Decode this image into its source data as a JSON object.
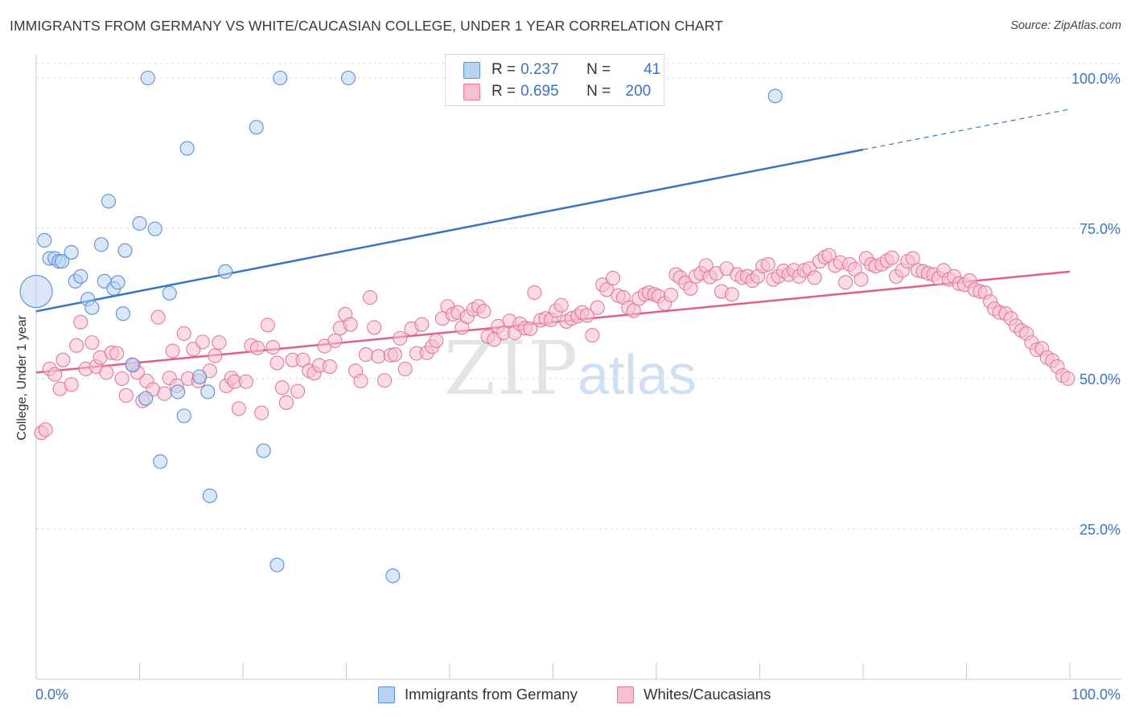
{
  "title": "IMMIGRANTS FROM GERMANY VS WHITE/CAUCASIAN COLLEGE, UNDER 1 YEAR CORRELATION CHART",
  "source": "Source: ZipAtlas.com",
  "watermark": {
    "zip": "ZIP",
    "atlas": "atlas"
  },
  "legend": {
    "r_label": "R =",
    "n_label": "N =",
    "series": [
      {
        "name": "Immigrants from Germany",
        "r": "0.237",
        "n": "41",
        "fill": "#b9d4f3",
        "stroke": "#5b8fd6"
      },
      {
        "name": "Whites/Caucasians",
        "r": "0.695",
        "n": "200",
        "fill": "#f7bfd0",
        "stroke": "#e27a9e"
      }
    ]
  },
  "colors": {
    "blue_fill": "#b9d4f3",
    "blue_stroke": "#5b8fd6",
    "blue_line": "#3a74c4",
    "pink_fill": "#f7bfd0",
    "pink_stroke": "#e27a9e",
    "pink_line": "#e0608a",
    "tick_label": "#3a74c4",
    "grid": "#d8d8d8"
  },
  "chart_data": {
    "type": "scatter",
    "xlabel": "",
    "ylabel": "College, Under 1 year",
    "xlim": [
      0,
      100
    ],
    "ylim": [
      0,
      103
    ],
    "x_tick_labels": [
      {
        "value": 0,
        "label": "0.0%"
      },
      {
        "value": 100,
        "label": "100.0%"
      }
    ],
    "y_tick_labels": [
      {
        "value": 25,
        "label": "25.0%"
      },
      {
        "value": 50,
        "label": "50.0%"
      },
      {
        "value": 75,
        "label": "75.0%"
      },
      {
        "value": 100,
        "label": "100.0%"
      }
    ],
    "grid": "horizontal dashed",
    "series": [
      {
        "name": "Immigrants from Germany",
        "points": [
          [
            0.0,
            64.5
          ],
          [
            0.8,
            73.0
          ],
          [
            1.3,
            70.0
          ],
          [
            1.8,
            70.0
          ],
          [
            2.2,
            69.5
          ],
          [
            2.5,
            69.5
          ],
          [
            3.4,
            71.0
          ],
          [
            3.8,
            66.2
          ],
          [
            4.3,
            67.0
          ],
          [
            5.0,
            63.2
          ],
          [
            5.4,
            61.8
          ],
          [
            6.3,
            72.3
          ],
          [
            6.6,
            66.2
          ],
          [
            7.0,
            79.5
          ],
          [
            7.5,
            65.0
          ],
          [
            7.9,
            66.0
          ],
          [
            8.4,
            60.8
          ],
          [
            8.6,
            71.3
          ],
          [
            9.3,
            52.3
          ],
          [
            10.0,
            75.8
          ],
          [
            10.6,
            46.7
          ],
          [
            10.8,
            100.0
          ],
          [
            11.5,
            74.9
          ],
          [
            12.0,
            36.2
          ],
          [
            12.9,
            64.2
          ],
          [
            13.7,
            47.8
          ],
          [
            14.3,
            43.8
          ],
          [
            14.6,
            88.3
          ],
          [
            15.8,
            50.3
          ],
          [
            16.6,
            47.8
          ],
          [
            16.8,
            30.5
          ],
          [
            18.3,
            67.8
          ],
          [
            21.3,
            91.8
          ],
          [
            22.0,
            38.0
          ],
          [
            23.3,
            19.0
          ],
          [
            23.6,
            100.0
          ],
          [
            30.2,
            100.0
          ],
          [
            34.5,
            17.2
          ],
          [
            71.5,
            97.0
          ]
        ],
        "trend": {
          "x": [
            0,
            100
          ],
          "y": [
            61.2,
            94.8
          ],
          "solid_until": 80
        }
      },
      {
        "name": "Whites/Caucasians",
        "points": [
          [
            0.5,
            41.0
          ],
          [
            0.9,
            41.5
          ],
          [
            1.3,
            51.6
          ],
          [
            1.8,
            50.7
          ],
          [
            2.3,
            48.3
          ],
          [
            2.6,
            53.1
          ],
          [
            3.4,
            49.0
          ],
          [
            3.9,
            55.5
          ],
          [
            4.3,
            59.4
          ],
          [
            4.8,
            51.6
          ],
          [
            5.4,
            56.0
          ],
          [
            5.8,
            52.0
          ],
          [
            6.2,
            53.5
          ],
          [
            6.8,
            51.0
          ],
          [
            7.3,
            54.3
          ],
          [
            7.8,
            54.2
          ],
          [
            8.3,
            50.0
          ],
          [
            8.7,
            47.2
          ],
          [
            9.4,
            52.2
          ],
          [
            9.8,
            51.0
          ],
          [
            10.3,
            46.3
          ],
          [
            10.7,
            49.6
          ],
          [
            11.3,
            48.2
          ],
          [
            11.8,
            60.2
          ],
          [
            12.4,
            47.5
          ],
          [
            12.9,
            50.1
          ],
          [
            13.2,
            54.6
          ],
          [
            13.6,
            48.8
          ],
          [
            14.3,
            57.5
          ],
          [
            14.7,
            50.0
          ],
          [
            15.2,
            54.9
          ],
          [
            15.7,
            49.6
          ],
          [
            16.1,
            56.1
          ],
          [
            16.8,
            51.3
          ],
          [
            17.3,
            53.8
          ],
          [
            17.7,
            56.0
          ],
          [
            18.4,
            48.8
          ],
          [
            18.9,
            50.1
          ],
          [
            19.2,
            49.5
          ],
          [
            19.6,
            45.0
          ],
          [
            20.3,
            49.5
          ],
          [
            20.8,
            55.5
          ],
          [
            21.4,
            55.1
          ],
          [
            21.8,
            44.3
          ],
          [
            22.4,
            58.9
          ],
          [
            22.9,
            55.2
          ],
          [
            23.3,
            52.6
          ],
          [
            23.8,
            48.5
          ],
          [
            24.2,
            46.0
          ],
          [
            24.8,
            53.1
          ],
          [
            25.3,
            47.9
          ],
          [
            25.8,
            53.1
          ],
          [
            26.4,
            51.3
          ],
          [
            26.9,
            50.9
          ],
          [
            27.4,
            52.2
          ],
          [
            27.9,
            55.4
          ],
          [
            28.4,
            52.0
          ],
          [
            28.9,
            56.3
          ],
          [
            29.4,
            58.4
          ],
          [
            29.9,
            60.7
          ],
          [
            30.4,
            59.0
          ],
          [
            30.9,
            51.3
          ],
          [
            31.4,
            49.6
          ],
          [
            31.9,
            54.0
          ],
          [
            32.3,
            63.5
          ],
          [
            32.7,
            58.5
          ],
          [
            33.1,
            53.7
          ],
          [
            33.7,
            49.7
          ],
          [
            34.3,
            53.9
          ],
          [
            34.7,
            54.0
          ],
          [
            35.2,
            56.7
          ],
          [
            35.7,
            51.6
          ],
          [
            36.3,
            58.3
          ],
          [
            36.8,
            54.2
          ],
          [
            37.3,
            59.0
          ],
          [
            37.8,
            54.3
          ],
          [
            38.3,
            55.3
          ],
          [
            38.7,
            56.3
          ],
          [
            39.3,
            60.0
          ],
          [
            39.8,
            62.0
          ],
          [
            40.3,
            60.7
          ],
          [
            40.8,
            61.0
          ],
          [
            41.2,
            58.5
          ],
          [
            41.7,
            60.3
          ],
          [
            42.3,
            61.5
          ],
          [
            42.8,
            62.0
          ],
          [
            43.3,
            61.2
          ],
          [
            43.7,
            57.0
          ],
          [
            44.3,
            56.5
          ],
          [
            44.7,
            58.7
          ],
          [
            45.2,
            57.6
          ],
          [
            45.8,
            59.6
          ],
          [
            46.3,
            57.6
          ],
          [
            46.8,
            59.1
          ],
          [
            47.3,
            58.4
          ],
          [
            47.8,
            58.3
          ],
          [
            48.2,
            64.3
          ],
          [
            48.8,
            59.7
          ],
          [
            49.3,
            60.0
          ],
          [
            49.8,
            59.8
          ],
          [
            50.3,
            61.3
          ],
          [
            50.8,
            62.2
          ],
          [
            51.3,
            59.5
          ],
          [
            51.8,
            60.0
          ],
          [
            52.4,
            60.4
          ],
          [
            52.8,
            61.0
          ],
          [
            53.3,
            60.5
          ],
          [
            53.8,
            57.2
          ],
          [
            54.3,
            61.8
          ],
          [
            54.8,
            65.6
          ],
          [
            55.2,
            64.8
          ],
          [
            55.8,
            66.7
          ],
          [
            56.3,
            63.8
          ],
          [
            56.8,
            63.5
          ],
          [
            57.3,
            61.8
          ],
          [
            57.8,
            61.3
          ],
          [
            58.3,
            63.3
          ],
          [
            58.9,
            64.0
          ],
          [
            59.3,
            64.3
          ],
          [
            59.8,
            64.0
          ],
          [
            60.2,
            63.7
          ],
          [
            60.8,
            62.5
          ],
          [
            61.4,
            63.9
          ],
          [
            61.9,
            67.3
          ],
          [
            62.3,
            66.8
          ],
          [
            62.8,
            65.9
          ],
          [
            63.3,
            65.0
          ],
          [
            63.8,
            67.0
          ],
          [
            64.3,
            67.5
          ],
          [
            64.8,
            68.8
          ],
          [
            65.2,
            66.9
          ],
          [
            65.8,
            67.5
          ],
          [
            66.3,
            64.5
          ],
          [
            66.8,
            68.3
          ],
          [
            67.3,
            64.0
          ],
          [
            67.8,
            67.3
          ],
          [
            68.3,
            66.8
          ],
          [
            68.8,
            67.0
          ],
          [
            69.3,
            66.3
          ],
          [
            69.8,
            67.0
          ],
          [
            70.3,
            68.7
          ],
          [
            70.8,
            69.0
          ],
          [
            71.3,
            66.5
          ],
          [
            71.8,
            67.0
          ],
          [
            72.3,
            67.9
          ],
          [
            72.8,
            67.3
          ],
          [
            73.3,
            68.0
          ],
          [
            73.8,
            67.0
          ],
          [
            74.3,
            68.0
          ],
          [
            74.8,
            68.3
          ],
          [
            75.3,
            66.8
          ],
          [
            75.8,
            69.5
          ],
          [
            76.3,
            70.2
          ],
          [
            76.7,
            70.5
          ],
          [
            77.3,
            68.8
          ],
          [
            77.8,
            69.3
          ],
          [
            78.3,
            66.0
          ],
          [
            78.7,
            69.0
          ],
          [
            79.2,
            68.2
          ],
          [
            79.8,
            66.5
          ],
          [
            80.3,
            70.0
          ],
          [
            80.8,
            69.0
          ],
          [
            81.2,
            68.7
          ],
          [
            81.8,
            69.0
          ],
          [
            82.3,
            69.6
          ],
          [
            82.8,
            70.1
          ],
          [
            83.2,
            67.0
          ],
          [
            83.8,
            68.0
          ],
          [
            84.3,
            69.5
          ],
          [
            84.8,
            70.0
          ],
          [
            85.3,
            68.0
          ],
          [
            85.8,
            67.8
          ],
          [
            86.3,
            67.5
          ],
          [
            86.8,
            67.3
          ],
          [
            87.3,
            66.7
          ],
          [
            87.8,
            68.0
          ],
          [
            88.3,
            66.5
          ],
          [
            88.8,
            67.0
          ],
          [
            89.3,
            65.8
          ],
          [
            89.8,
            65.6
          ],
          [
            90.3,
            66.3
          ],
          [
            90.8,
            64.8
          ],
          [
            91.3,
            64.5
          ],
          [
            91.8,
            64.3
          ],
          [
            92.3,
            62.8
          ],
          [
            92.7,
            61.6
          ],
          [
            93.2,
            61.0
          ],
          [
            93.8,
            60.8
          ],
          [
            94.3,
            60.0
          ],
          [
            94.8,
            58.8
          ],
          [
            95.3,
            58.0
          ],
          [
            95.8,
            57.5
          ],
          [
            96.3,
            56.0
          ],
          [
            96.8,
            54.8
          ],
          [
            97.3,
            55.0
          ],
          [
            97.8,
            53.5
          ],
          [
            98.3,
            53.0
          ],
          [
            98.8,
            52.0
          ],
          [
            99.3,
            50.5
          ],
          [
            99.8,
            50.0
          ]
        ],
        "trend": {
          "x": [
            0,
            100
          ],
          "y": [
            51.0,
            67.8
          ],
          "solid_until": 100
        }
      }
    ]
  }
}
